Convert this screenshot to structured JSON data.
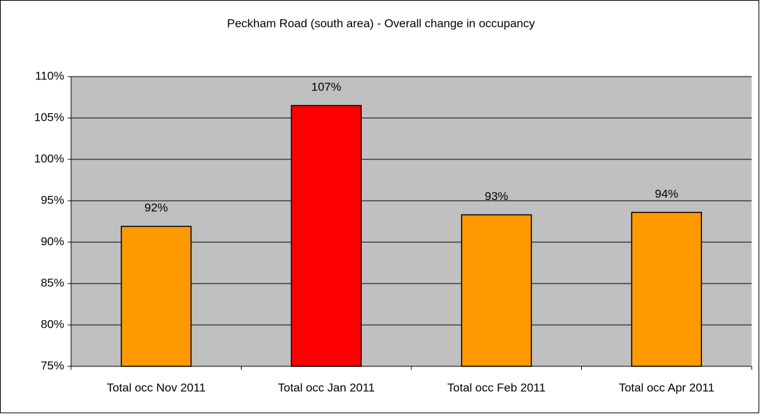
{
  "chart_data": {
    "type": "bar",
    "title": "Peckham Road (south area) - Overall change in occupancy",
    "categories": [
      "Total occ Nov 2011",
      "Total occ Jan 2011",
      "Total occ Feb 2011",
      "Total occ Apr 2011"
    ],
    "values": [
      91.9,
      106.5,
      93.3,
      93.6
    ],
    "value_labels": [
      "92%",
      "107%",
      "93%",
      "94%"
    ],
    "colors": [
      "#ff9900",
      "#ff0000",
      "#ff9900",
      "#ff9900"
    ],
    "ylim": [
      75,
      110
    ],
    "yticks": [
      {
        "value": 75,
        "label": "75%"
      },
      {
        "value": 80,
        "label": "80%"
      },
      {
        "value": 85,
        "label": "85%"
      },
      {
        "value": 90,
        "label": "90%"
      },
      {
        "value": 95,
        "label": "95%"
      },
      {
        "value": 100,
        "label": "100%"
      },
      {
        "value": 105,
        "label": "105%"
      },
      {
        "value": 110,
        "label": "110%"
      }
    ],
    "grid": true
  }
}
